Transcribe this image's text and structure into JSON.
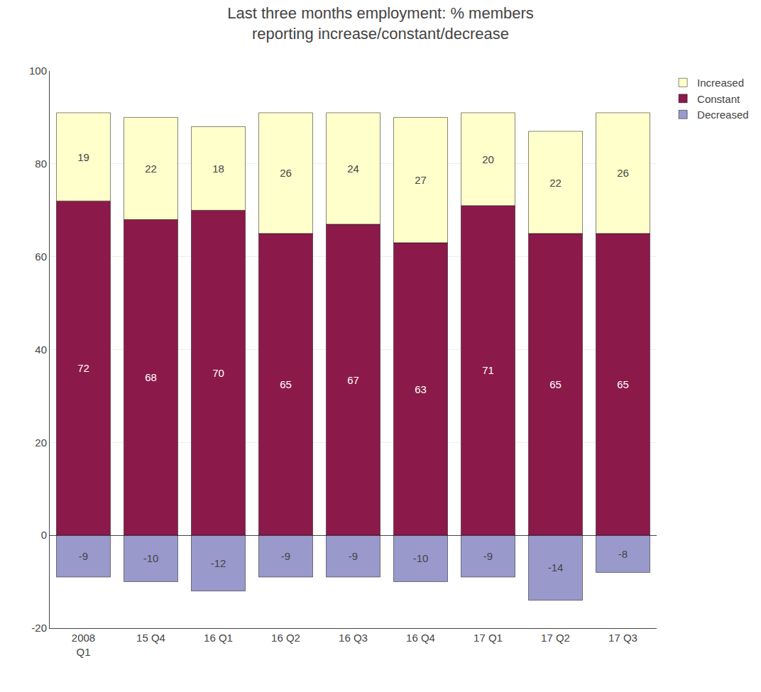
{
  "chart_data": {
    "type": "bar",
    "stacked": true,
    "title": "Last three months employment: % members\nreporting increase/constant/decrease",
    "categories": [
      "2008\nQ1",
      "15 Q4",
      "16 Q1",
      "16 Q2",
      "16 Q3",
      "16 Q4",
      "17 Q1",
      "17 Q2",
      "17 Q3"
    ],
    "series": [
      {
        "name": "Increased",
        "color": "#FFFFCC",
        "values": [
          19,
          22,
          18,
          26,
          24,
          27,
          20,
          22,
          26
        ]
      },
      {
        "name": "Constant",
        "color": "#8B1A4A",
        "values": [
          72,
          68,
          70,
          65,
          67,
          63,
          71,
          65,
          65
        ]
      },
      {
        "name": "Decreased",
        "color": "#9999CC",
        "values": [
          -9,
          -10,
          -12,
          -9,
          -9,
          -10,
          -9,
          -14,
          -8
        ]
      }
    ],
    "ylim": [
      -20,
      100
    ],
    "yticks": [
      -20,
      0,
      20,
      40,
      60,
      80,
      100
    ],
    "grid": true,
    "data_labels": true
  }
}
